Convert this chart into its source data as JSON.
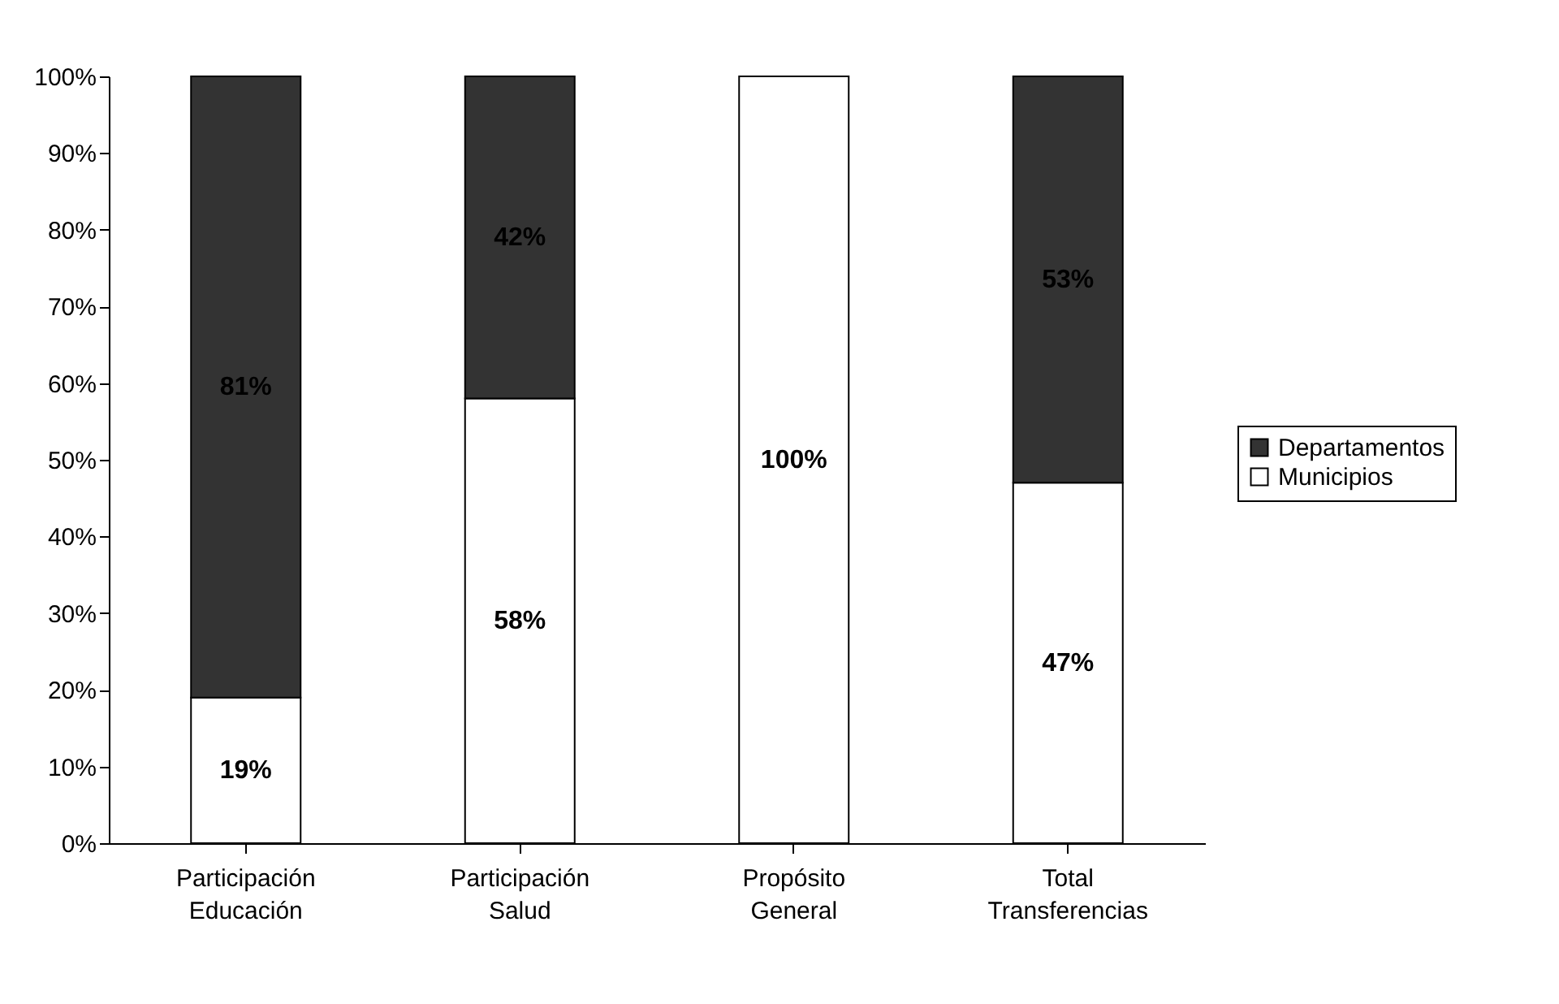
{
  "chart_data": {
    "type": "bar",
    "stacked": true,
    "categories": [
      "Participación Educación",
      "Participación Salud",
      "Propósito General",
      "Total Transferencias"
    ],
    "series": [
      {
        "name": "Municipios",
        "color": "#ffffff",
        "values": [
          19,
          58,
          100,
          47
        ],
        "value_labels": [
          "19%",
          "58%",
          "100%",
          "47%"
        ]
      },
      {
        "name": "Departamentos",
        "color": "#333333",
        "values": [
          81,
          42,
          0,
          53
        ],
        "value_labels": [
          "81%",
          "42%",
          null,
          "53%"
        ]
      }
    ],
    "ylim": [
      0,
      100
    ],
    "yticks": [
      {
        "value": 0,
        "label": "0%"
      },
      {
        "value": 10,
        "label": "10%"
      },
      {
        "value": 20,
        "label": "20%"
      },
      {
        "value": 30,
        "label": "30%"
      },
      {
        "value": 40,
        "label": "40%"
      },
      {
        "value": 50,
        "label": "50%"
      },
      {
        "value": 60,
        "label": "60%"
      },
      {
        "value": 70,
        "label": "70%"
      },
      {
        "value": 80,
        "label": "80%"
      },
      {
        "value": 90,
        "label": "90%"
      },
      {
        "value": 100,
        "label": "100%"
      }
    ],
    "grid": false,
    "legend": "right"
  }
}
